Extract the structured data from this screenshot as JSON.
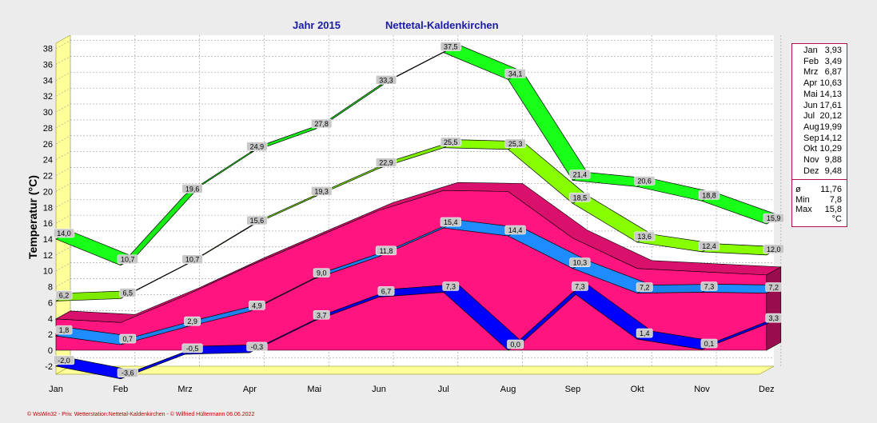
{
  "chart_data": {
    "type": "area",
    "title": "Jahr  2015",
    "subtitle": "Nettetal-Kaldenkirchen",
    "ylabel": "Temperatur  (°C)",
    "xlabel": "",
    "categories": [
      "Jan",
      "Feb",
      "Mrz",
      "Apr",
      "Mai",
      "Jun",
      "Jul",
      "Aug",
      "Sep",
      "Okt",
      "Nov",
      "Dez"
    ],
    "ylim": [
      -4,
      39
    ],
    "yticks": [
      -2,
      0,
      2,
      4,
      6,
      8,
      10,
      12,
      14,
      16,
      18,
      20,
      22,
      24,
      26,
      28,
      30,
      32,
      34,
      36,
      38
    ],
    "grid": true,
    "series": [
      {
        "values": [
          14.0,
          10.7,
          19.6,
          24.9,
          27.8,
          33.3,
          37.5,
          34.1,
          21.4,
          20.6,
          18.8,
          15.9
        ],
        "labels": [
          "14,0",
          "10,7",
          "19,6",
          "24,9",
          "27,8",
          "33,3",
          "37,5",
          "34,1",
          "21,4",
          "20,6",
          "18,8",
          "15,9"
        ],
        "color": "#18ff18"
      },
      {
        "values": [
          6.2,
          6.5,
          10.7,
          15.6,
          19.3,
          22.9,
          25.5,
          25.3,
          18.5,
          13.6,
          12.4,
          12.0
        ],
        "labels": [
          "6,2",
          "6,5",
          "10,7",
          "15,6",
          "19,3",
          "22,9",
          "25,5",
          "25,3",
          "18,5",
          "13,6",
          "12,4",
          "12,0"
        ],
        "color": "#88ff00"
      },
      {
        "values": [
          3.93,
          3.49,
          6.87,
          10.63,
          14.13,
          17.61,
          20.12,
          19.99,
          14.12,
          10.29,
          9.88,
          9.48
        ],
        "labels": [],
        "color": "#ff1480"
      },
      {
        "values": [
          1.8,
          0.7,
          2.9,
          4.9,
          9.0,
          11.8,
          15.4,
          14.4,
          10.3,
          7.2,
          7.3,
          7.2
        ],
        "labels": [
          "1,8",
          "0,7",
          "2,9",
          "4,9",
          "9,0",
          "11,8",
          "15,4",
          "14,4",
          "10,3",
          "7,2",
          "7,3",
          "7,2"
        ],
        "color": "#1e8cff"
      },
      {
        "values": [
          -2.0,
          -3.6,
          -0.5,
          -0.3,
          3.7,
          6.7,
          7.3,
          0.0,
          7.3,
          1.4,
          0.1,
          3.3
        ],
        "labels": [
          "-2,0",
          "-3,6",
          "-0,5",
          "-0,3",
          "3,7",
          "6,7",
          "7,3",
          "0,0",
          "7,3",
          "1,4",
          "0,1",
          "3,3"
        ],
        "color": "#0000ff"
      }
    ],
    "legend": {
      "placement": "right",
      "rows": [
        {
          "month": "Jan",
          "value": "3,93"
        },
        {
          "month": "Feb",
          "value": "3,49"
        },
        {
          "month": "Mrz",
          "value": "6,87"
        },
        {
          "month": "Apr",
          "value": "10,63"
        },
        {
          "month": "Mai",
          "value": "14,13"
        },
        {
          "month": "Jun",
          "value": "17,61"
        },
        {
          "month": "Jul",
          "value": "20,12"
        },
        {
          "month": "Aug",
          "value": "19,99"
        },
        {
          "month": "Sep",
          "value": "14,12"
        },
        {
          "month": "Okt",
          "value": "10,29"
        },
        {
          "month": "Nov",
          "value": "9,88"
        },
        {
          "month": "Dez",
          "value": "9,48"
        }
      ],
      "stats": [
        {
          "label": "ø",
          "value": "11,76"
        },
        {
          "label": "Min",
          "value": "7,8"
        },
        {
          "label": "Max",
          "value": "15,8"
        }
      ],
      "unit": "°C"
    },
    "footer": "© WsWin32  -  Priv. Wetterstation:Nettetal-Kaldenkirchen  -  © Wilfried Hültermann  06.06.2022"
  }
}
